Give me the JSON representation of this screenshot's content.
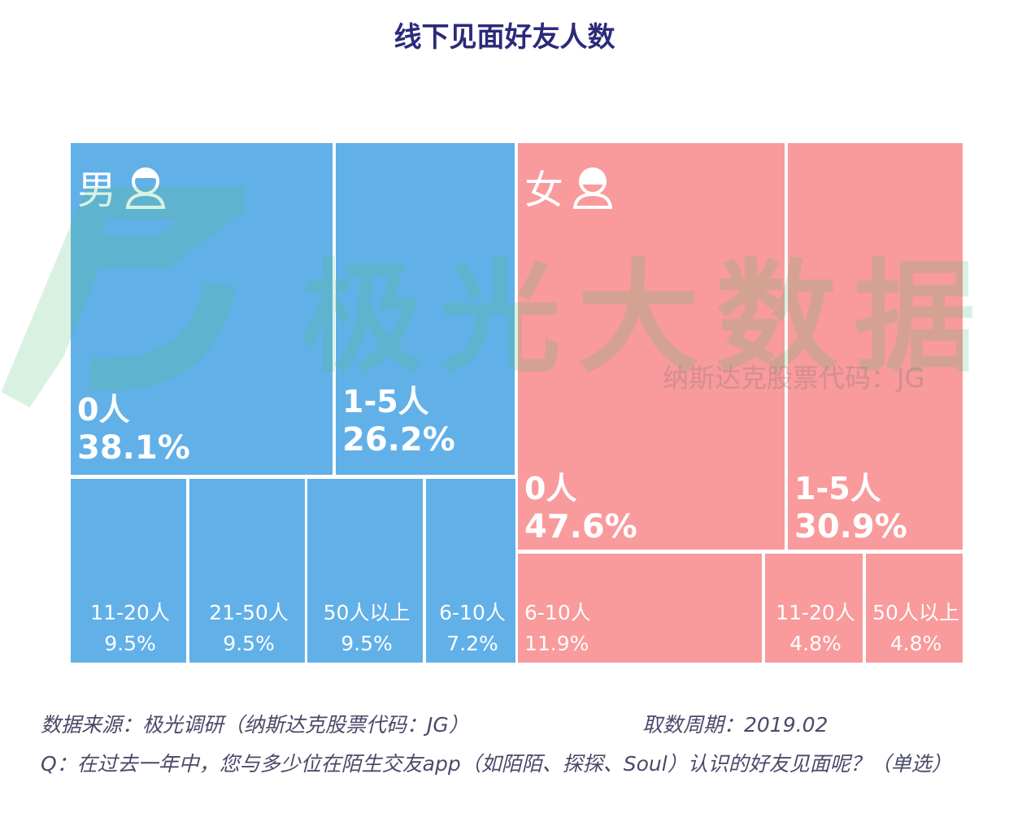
{
  "chart_data": {
    "type": "treemap",
    "title": "线下见面好友人数",
    "groups": [
      {
        "name": "男",
        "color": "#62b0e8",
        "categories": [
          "0人",
          "1-5人",
          "11-20人",
          "21-50人",
          "50人以上",
          "6-10人"
        ],
        "values": [
          38.1,
          26.2,
          9.5,
          9.5,
          9.5,
          7.2
        ],
        "value_labels": [
          "38.1%",
          "26.2%",
          "9.5%",
          "9.5%",
          "9.5%",
          "7.2%"
        ]
      },
      {
        "name": "女",
        "color": "#f99a9c",
        "categories": [
          "0人",
          "1-5人",
          "6-10人",
          "11-20人",
          "50人以上"
        ],
        "values": [
          47.6,
          30.9,
          11.9,
          4.8,
          4.8
        ],
        "value_labels": [
          "47.6%",
          "30.9%",
          "11.9%",
          "4.8%",
          "4.8%"
        ]
      }
    ],
    "watermark": "极光大数据",
    "watermark_sub": "纳斯达克股票代码：JG",
    "source": "数据来源：极光调研（纳斯达克股票代码：JG）",
    "period": "取数周期：2019.02",
    "question": "Q：在过去一年中，您与多少位在陌生交友app（如陌陌、探探、Soul）认识的好友见面呢？（单选）"
  }
}
